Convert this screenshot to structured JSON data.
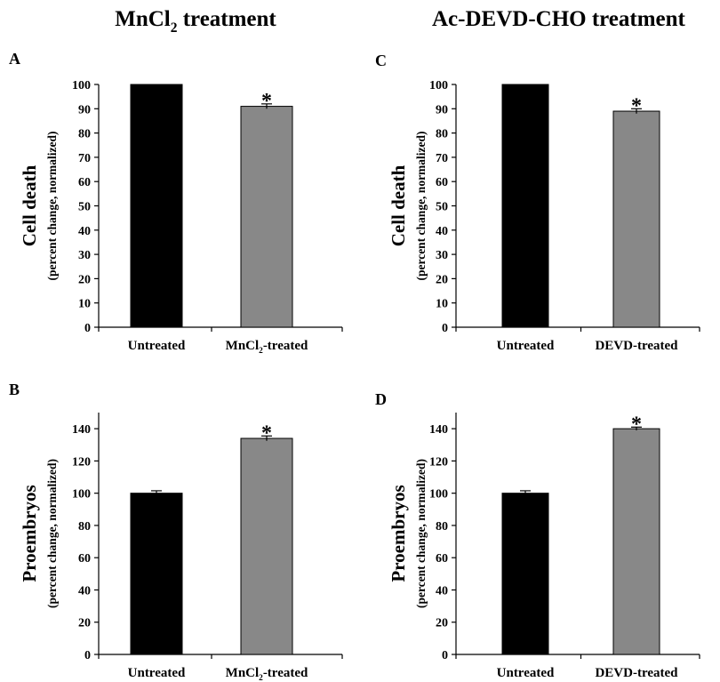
{
  "figure": {
    "col_titles": [
      {
        "main": "MnCl",
        "sub": "2",
        "rest": " treatment"
      },
      {
        "main": "Ac-DEVD-CHO treatment",
        "sub": "",
        "rest": ""
      }
    ]
  },
  "chart_data": [
    {
      "panel": "A",
      "type": "bar",
      "ylabel": "Cell death",
      "ylabel_sub": "(percent change, normalized)",
      "categories": [
        {
          "main": "Untreated",
          "sub": "",
          "rest": ""
        },
        {
          "main": "MnCl",
          "sub": "2",
          "rest": "-treated"
        }
      ],
      "values": [
        100,
        91
      ],
      "errors": [
        0,
        1
      ],
      "colors": [
        "#000000",
        "#888888"
      ],
      "significance": [
        "",
        "*"
      ],
      "ylim": [
        0,
        100
      ],
      "yticks": [
        0,
        10,
        20,
        30,
        40,
        50,
        60,
        70,
        80,
        90,
        100
      ]
    },
    {
      "panel": "B",
      "type": "bar",
      "ylabel": "Proembryos",
      "ylabel_sub": "(percent change, normalized)",
      "categories": [
        {
          "main": "Untreated",
          "sub": "",
          "rest": ""
        },
        {
          "main": "MnCl",
          "sub": "2",
          "rest": "-treated"
        }
      ],
      "values": [
        100,
        134
      ],
      "errors": [
        1.5,
        1.5
      ],
      "colors": [
        "#000000",
        "#888888"
      ],
      "significance": [
        "",
        "*"
      ],
      "ylim": [
        0,
        150
      ],
      "yticks": [
        0,
        20,
        40,
        60,
        80,
        100,
        120,
        140
      ]
    },
    {
      "panel": "C",
      "type": "bar",
      "ylabel": "Cell death",
      "ylabel_sub": "(percent change, normalized)",
      "categories": [
        {
          "main": "Untreated",
          "sub": "",
          "rest": ""
        },
        {
          "main": "DEVD-treated",
          "sub": "",
          "rest": ""
        }
      ],
      "values": [
        100,
        89
      ],
      "errors": [
        0,
        1
      ],
      "colors": [
        "#000000",
        "#888888"
      ],
      "significance": [
        "",
        "*"
      ],
      "ylim": [
        0,
        100
      ],
      "yticks": [
        0,
        10,
        20,
        30,
        40,
        50,
        60,
        70,
        80,
        90,
        100
      ]
    },
    {
      "panel": "D",
      "type": "bar",
      "ylabel": "Proembryos",
      "ylabel_sub": "(percent change, normalized)",
      "categories": [
        {
          "main": "Untreated",
          "sub": "",
          "rest": ""
        },
        {
          "main": "DEVD-treated",
          "sub": "",
          "rest": ""
        }
      ],
      "values": [
        100,
        140
      ],
      "errors": [
        1.5,
        1
      ],
      "colors": [
        "#000000",
        "#888888"
      ],
      "significance": [
        "",
        "*"
      ],
      "ylim": [
        0,
        150
      ],
      "yticks": [
        0,
        20,
        40,
        60,
        80,
        100,
        120,
        140
      ]
    }
  ]
}
